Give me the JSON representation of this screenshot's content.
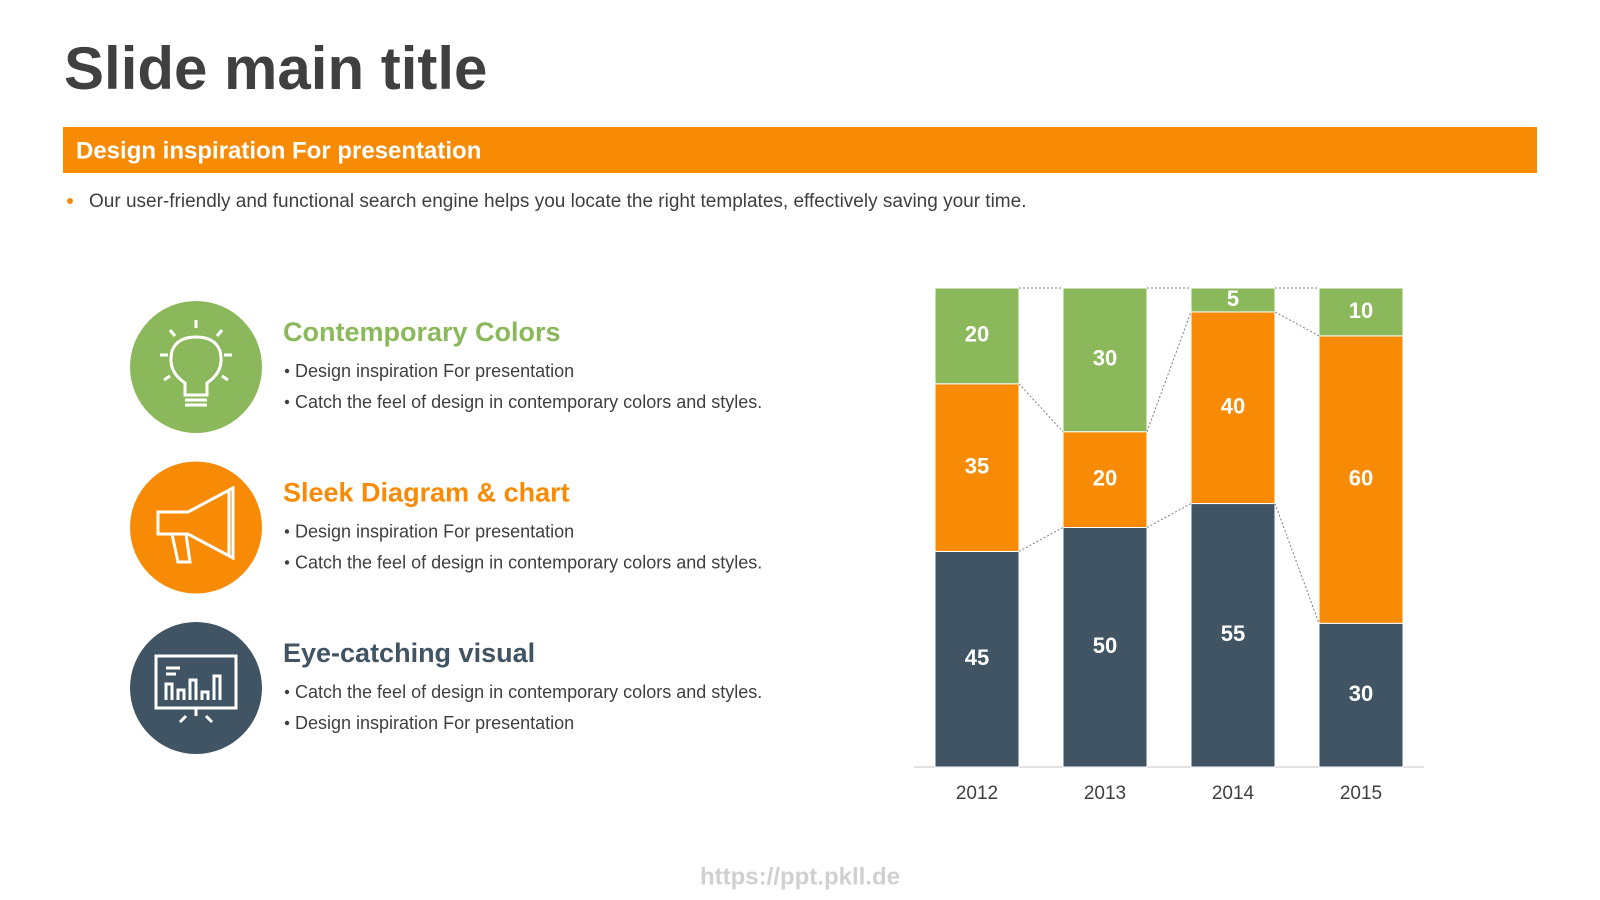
{
  "title": "Slide main title",
  "banner": "Design inspiration For presentation",
  "intro": "Our user-friendly and functional search engine helps you locate the right templates, effectively saving your time.",
  "items": [
    {
      "heading": "Contemporary Colors",
      "color": "#8cb85c",
      "bullets": [
        "Design inspiration For presentation",
        "Catch the feel of design in contemporary colors and styles."
      ]
    },
    {
      "heading": "Sleek Diagram & chart",
      "color": "#f78b05",
      "bullets": [
        "Design inspiration For presentation",
        "Catch the feel of design in contemporary colors and styles."
      ]
    },
    {
      "heading": "Eye-catching visual",
      "color": "#415463",
      "bullets": [
        "Catch the feel of design in contemporary colors and styles.",
        "Design inspiration For presentation"
      ]
    }
  ],
  "chart_data": {
    "type": "stacked_bar",
    "categories": [
      "2012",
      "2013",
      "2014",
      "2015"
    ],
    "series": [
      {
        "color": "#415463",
        "values": [
          45,
          50,
          55,
          30
        ]
      },
      {
        "color": "#f78b05",
        "values": [
          35,
          20,
          40,
          60
        ]
      },
      {
        "color": "#8cb85c",
        "values": [
          20,
          30,
          5,
          10
        ]
      }
    ],
    "ylim": [
      0,
      100
    ]
  },
  "watermark": "https://ppt.pkll.de"
}
